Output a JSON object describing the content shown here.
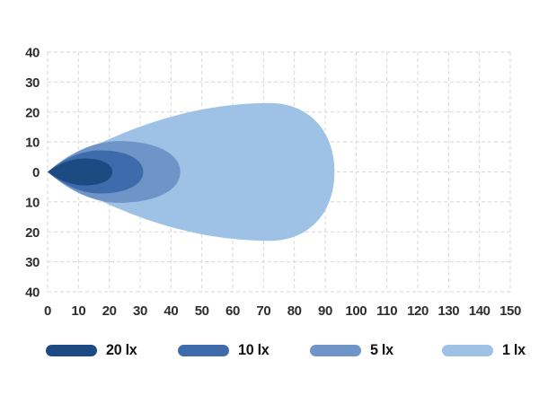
{
  "chart_data": {
    "type": "area",
    "title": "",
    "xlabel": "",
    "ylabel": "",
    "description": "Isolux beam pattern diagram with nested illuminance contours",
    "xlim": [
      0,
      150
    ],
    "ylim": [
      -40,
      40
    ],
    "x_ticks": [
      0,
      10,
      20,
      30,
      40,
      50,
      60,
      70,
      80,
      90,
      100,
      110,
      120,
      130,
      140,
      150
    ],
    "y_tick_labels": [
      40,
      30,
      20,
      10,
      0,
      10,
      20,
      30,
      40
    ],
    "y_tick_values": [
      40,
      30,
      20,
      10,
      0,
      -10,
      -20,
      -30,
      -40
    ],
    "grid": {
      "style": "dashed",
      "color": "#d7d7d7",
      "step": 10
    },
    "series": [
      {
        "name": "1 lx",
        "color": "#9dc2e6",
        "x_tip": 0,
        "x_widest": 72,
        "x_end": 93,
        "half_height": 23
      },
      {
        "name": "5 lx",
        "color": "#6f94c7",
        "x_tip": 0,
        "x_widest": 23,
        "x_end": 43,
        "half_height": 10.3
      },
      {
        "name": "10 lx",
        "color": "#3e6bac",
        "x_tip": 0,
        "x_widest": 17,
        "x_end": 31,
        "half_height": 7.2
      },
      {
        "name": "20 lx",
        "color": "#1d4a80",
        "x_tip": 0,
        "x_widest": 12,
        "x_end": 21,
        "half_height": 4.5
      }
    ],
    "legend": [
      {
        "label": "20 lx",
        "color": "#1d4a80"
      },
      {
        "label": "10 lx",
        "color": "#3e6bac"
      },
      {
        "label": "5 lx",
        "color": "#6f94c7"
      },
      {
        "label": "1 lx",
        "color": "#9dc2e6"
      }
    ],
    "legend_position": "bottom",
    "text_color": "#2e2e2e"
  }
}
